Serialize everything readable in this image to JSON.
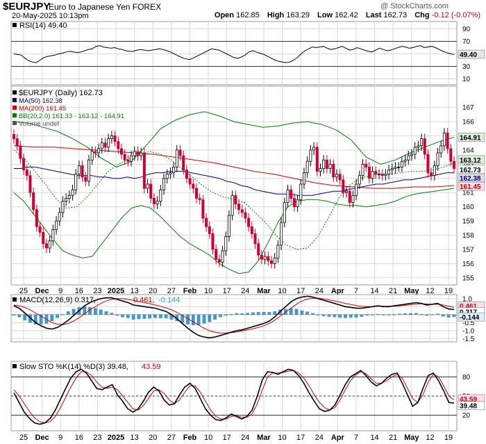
{
  "header": {
    "symbol": "$EURJPY",
    "description": "Euro to Japanese Yen FOREX",
    "datetime": "20-May-2025 10:13pm",
    "copyright": "@ StockCharts.com",
    "open_label": "Open",
    "open": "162.85",
    "high_label": "High",
    "high": "163.29",
    "low_label": "Low",
    "low": "162.42",
    "last_label": "Last",
    "last": "162.73",
    "chg_label": "Chg",
    "chg": "-0.12 (-0.07%)",
    "chg_color": "#cc0000"
  },
  "chart_data": [
    {
      "type": "line",
      "name": "rsi_panel",
      "legend": "RSI(14) 49.40",
      "ylim": [
        0,
        100
      ],
      "y_ticks": [
        "90",
        "70",
        "50",
        "30",
        "10"
      ],
      "reference_lines": [
        70,
        30
      ],
      "last_value_label": "49.40",
      "series": [
        {
          "values": [
            50,
            49,
            48,
            43,
            39,
            37,
            36,
            40,
            44,
            46,
            47,
            48,
            50,
            51,
            53,
            54,
            53,
            52,
            53,
            55,
            57,
            58,
            62,
            63,
            61,
            60,
            59,
            60,
            58,
            57,
            55,
            54,
            54,
            56,
            57,
            56,
            55,
            56,
            57,
            58,
            57,
            55,
            53,
            50,
            47,
            44,
            42,
            41,
            43,
            46,
            49,
            52,
            55,
            58,
            57,
            56,
            53,
            50,
            47,
            44,
            43,
            45,
            48,
            53,
            55,
            53,
            51,
            49,
            46,
            43,
            40,
            38,
            37,
            36,
            37,
            40,
            44,
            50,
            55,
            58,
            61,
            60,
            61,
            62,
            59,
            57,
            58,
            60,
            62,
            59,
            56,
            57,
            60,
            58,
            56,
            54,
            53,
            56,
            59,
            57,
            55,
            56,
            58,
            60,
            62,
            61,
            59,
            60,
            62,
            63,
            60,
            61,
            62,
            60,
            57,
            54,
            52,
            50,
            49
          ]
        }
      ]
    },
    {
      "type": "candlestick",
      "name": "price_panel",
      "legend": [
        "$EURJPY (Daily) 162.73",
        "MA(50) 162.38",
        "MA(200) 161.45",
        "BB(20,2.0) 161.33 - 163.12 - 164.91",
        "Volume undef"
      ],
      "ylim": [
        154.5,
        168.5
      ],
      "y_ticks": [
        "167",
        "166",
        "165",
        "164",
        "163",
        "162",
        "161",
        "160",
        "159",
        "158",
        "157",
        "156",
        "155"
      ],
      "price_badges": [
        "164.91",
        "163.12",
        "162.73",
        "162.38",
        "161.45"
      ],
      "x_tick_labels": [
        "25",
        "Dec",
        "9",
        "16",
        "23",
        "2025",
        "13",
        "20",
        "27",
        "Feb",
        "10",
        "17",
        "24",
        "Mar",
        "10",
        "17",
        "24",
        "Apr",
        "7",
        "14",
        "21",
        "May",
        "12",
        "19"
      ],
      "bold_x_labels": [
        "Dec",
        "2025",
        "Feb",
        "Mar",
        "Apr",
        "May"
      ],
      "closes": [
        164.8,
        164.3,
        163.4,
        162.6,
        162.2,
        161.0,
        159.8,
        158.6,
        158.2,
        157.4,
        157.1,
        157.6,
        158.4,
        159.0,
        159.6,
        160.4,
        160.6,
        160.8,
        161.2,
        162.3,
        162.9,
        162.1,
        161.8,
        163.3,
        163.9,
        163.8,
        164.1,
        164.5,
        164.2,
        164.8,
        165.0,
        164.6,
        164.1,
        163.7,
        163.3,
        163.2,
        163.6,
        163.9,
        163.6,
        163.8,
        161.3,
        161.6,
        160.6,
        160.2,
        160.4,
        161.2,
        162.0,
        162.3,
        162.4,
        162.8,
        164.0,
        163.6,
        162.6,
        162.0,
        161.6,
        161.3,
        160.6,
        160.5,
        159.2,
        158.6,
        158.1,
        157.0,
        156.3,
        156.1,
        156.9,
        157.9,
        159.4,
        160.8,
        160.2,
        159.8,
        159.6,
        159.2,
        158.6,
        158.1,
        157.4,
        156.6,
        156.3,
        156.5,
        156.2,
        156.0,
        156.4,
        157.3,
        158.9,
        160.3,
        161.2,
        160.6,
        160.0,
        160.5,
        161.6,
        162.4,
        163.2,
        164.0,
        164.2,
        162.5,
        162.7,
        163.3,
        162.7,
        163.0,
        162.1,
        162.3,
        161.9,
        161.0,
        161.1,
        160.3,
        160.8,
        161.6,
        162.2,
        163.0,
        162.8,
        162.0,
        162.5,
        162.3,
        162.3,
        162.2,
        162.3,
        162.6,
        162.7,
        162.8,
        162.8,
        163.2,
        163.3,
        163.6,
        163.7,
        164.2,
        164.3,
        164.8,
        163.7,
        162.4,
        162.2,
        162.9,
        163.8,
        164.3,
        165.2,
        164.1,
        163.2,
        162.7
      ],
      "series": [
        {
          "name": "MA(50)",
          "color": "#000080",
          "values": [
            162.7,
            162.7,
            162.8,
            162.8,
            162.7,
            162.6,
            162.5,
            162.4,
            162.3,
            162.2,
            162.2,
            162.2,
            162.1,
            162.1,
            162.0,
            162.0,
            162.1,
            162.0,
            162.1,
            162.3,
            162.4,
            162.4,
            162.5,
            162.5,
            162.5,
            162.4,
            162.3,
            162.2,
            162.1,
            162.0,
            161.8,
            161.7,
            161.5,
            161.4,
            161.2,
            161.1,
            161.0,
            160.9,
            160.9,
            160.9,
            160.8,
            160.8,
            160.8,
            160.9,
            161.0,
            161.1,
            161.1,
            161.2,
            161.3,
            161.4,
            161.5,
            161.6,
            161.6,
            161.7,
            161.8,
            161.9,
            161.9,
            162.0,
            162.1,
            162.2,
            162.3,
            162.4,
            162.4
          ]
        },
        {
          "name": "MA(200)",
          "color": "#cc0000",
          "values": [
            164.3,
            164.2,
            164.2,
            164.1,
            164.0,
            163.9,
            163.8,
            163.7,
            163.5,
            163.3,
            163.1,
            162.8,
            162.5,
            162.3,
            162.0,
            161.7,
            161.5,
            161.4,
            161.3,
            161.3,
            161.4,
            161.4,
            161.5
          ]
        },
        {
          "name": "BB upper",
          "color": "#008000",
          "values": [
            166.0,
            165.9,
            165.6,
            165.3,
            164.8,
            164.2,
            163.4,
            162.8,
            163.2,
            164.3,
            165.5,
            166.1,
            166.5,
            166.7,
            166.4,
            166.0,
            165.8,
            165.6,
            165.7,
            165.9,
            166.0,
            165.8,
            165.4,
            164.7,
            163.5,
            163.0,
            163.3,
            163.8,
            164.2,
            164.6,
            164.9
          ]
        },
        {
          "name": "BB lower",
          "color": "#008000",
          "values": [
            161.0,
            160.4,
            159.5,
            158.6,
            157.7,
            156.9,
            156.6,
            156.4,
            156.5,
            157.4,
            158.3,
            159.2,
            159.9,
            160.1,
            159.9,
            159.3,
            158.6,
            157.9,
            157.4,
            157.0,
            156.6,
            156.0,
            155.6,
            155.3,
            155.4,
            156.2,
            157.5,
            158.9,
            160.0,
            160.4,
            160.5,
            160.5,
            160.4,
            160.2,
            160.1,
            160.1,
            160.0,
            160.1,
            160.2,
            160.4,
            160.7,
            160.9,
            161.0,
            161.1,
            161.2,
            161.3
          ]
        },
        {
          "name": "BB middle",
          "color": "#008000",
          "values": [
            164.0,
            163.4,
            162.5,
            161.6,
            160.6,
            159.9,
            160.0,
            160.7,
            161.6,
            162.5,
            163.0,
            163.4,
            163.7,
            163.9,
            163.7,
            163.3,
            162.7,
            162.1,
            161.5,
            161.0,
            160.7,
            160.5,
            160.3,
            159.6,
            158.9,
            158.0,
            157.3,
            157.0,
            157.1,
            157.9,
            159.2,
            160.6,
            161.5,
            162.0,
            162.2,
            162.3,
            162.3,
            162.4,
            162.5,
            162.5,
            162.6,
            162.8,
            163.1
          ]
        }
      ]
    },
    {
      "type": "line",
      "name": "macd_panel",
      "legend_prefix": "MACD(12,26,9) 0.317,",
      "legend_signal": " 0.461,",
      "legend_hist": " -0.144",
      "ylim": [
        -1.7,
        1.25
      ],
      "y_ticks": [
        "1.0",
        "0.5",
        "-0.5",
        "-1.0",
        "-1.5"
      ],
      "value_badges": [
        "0.461",
        "0.317",
        "-0.144"
      ],
      "series": [
        {
          "name": "MACD",
          "color": "#000000",
          "values": [
            0.55,
            0.4,
            0.1,
            -0.2,
            -0.5,
            -0.7,
            -0.85,
            -0.9,
            -0.8,
            -0.6,
            -0.35,
            -0.05,
            0.25,
            0.55,
            0.75,
            0.9,
            1.0,
            1.05,
            1.05,
            0.95,
            0.85,
            0.75,
            0.6,
            0.55,
            0.5,
            0.45,
            0.4,
            0.3,
            0.2,
            0.0,
            -0.25,
            -0.55,
            -0.85,
            -1.1,
            -1.3,
            -1.4,
            -1.45,
            -1.4,
            -1.3,
            -1.2,
            -1.1,
            -1.0,
            -0.95,
            -0.85,
            -0.75,
            -0.65,
            -0.55,
            -0.4,
            -0.15,
            0.2,
            0.5,
            0.8,
            1.0,
            1.1,
            1.15,
            1.1,
            1.0,
            0.9,
            0.8,
            0.7,
            0.6,
            0.5,
            0.45,
            0.4,
            0.4,
            0.45,
            0.5,
            0.55,
            0.5,
            0.5,
            0.55,
            0.6,
            0.65,
            0.7,
            0.75,
            0.7,
            0.6,
            0.65,
            0.7,
            0.5,
            0.35,
            0.32
          ]
        },
        {
          "name": "Signal",
          "color": "#cc0000",
          "values": [
            0.6,
            0.55,
            0.45,
            0.3,
            0.1,
            -0.1,
            -0.3,
            -0.5,
            -0.6,
            -0.62,
            -0.55,
            -0.4,
            -0.2,
            0.05,
            0.3,
            0.5,
            0.7,
            0.85,
            0.95,
            1.0,
            1.0,
            0.95,
            0.9,
            0.82,
            0.75,
            0.68,
            0.6,
            0.52,
            0.42,
            0.3,
            0.15,
            -0.05,
            -0.25,
            -0.45,
            -0.65,
            -0.85,
            -1.0,
            -1.1,
            -1.15,
            -1.15,
            -1.12,
            -1.08,
            -1.02,
            -0.95,
            -0.88,
            -0.8,
            -0.7,
            -0.55,
            -0.35,
            -0.1,
            0.15,
            0.4,
            0.65,
            0.85,
            0.97,
            1.02,
            1.02,
            0.98,
            0.92,
            0.85,
            0.78,
            0.7,
            0.63,
            0.57,
            0.52,
            0.5,
            0.5,
            0.52,
            0.52,
            0.52,
            0.53,
            0.55,
            0.58,
            0.62,
            0.66,
            0.68,
            0.66,
            0.64,
            0.65,
            0.6,
            0.52,
            0.46
          ]
        }
      ]
    },
    {
      "type": "line",
      "name": "sto_panel",
      "legend_prefix": "Slow STO %K(14) %D(3) 39.48,",
      "legend_d": " 43.59",
      "ylim": [
        0,
        100
      ],
      "y_ticks": [
        "80",
        "50",
        "20"
      ],
      "reference_lines": [
        80,
        50,
        20
      ],
      "value_badges": [
        "43.59",
        "39.48"
      ],
      "x_tick_labels": [
        "25",
        "Dec",
        "9",
        "16",
        "23",
        "2025",
        "13",
        "20",
        "27",
        "Feb",
        "10",
        "17",
        "24",
        "Mar",
        "10",
        "17",
        "24",
        "Apr",
        "7",
        "14",
        "21",
        "May",
        "12",
        "19"
      ],
      "series": [
        {
          "name": "%K",
          "color": "#000000",
          "values": [
            55,
            40,
            25,
            15,
            8,
            6,
            8,
            15,
            28,
            45,
            62,
            78,
            88,
            92,
            86,
            74,
            62,
            60,
            64,
            68,
            52,
            42,
            30,
            25,
            30,
            42,
            56,
            64,
            58,
            44,
            36,
            38,
            52,
            64,
            70,
            62,
            46,
            30,
            20,
            13,
            12,
            16,
            22,
            18,
            14,
            18,
            28,
            50,
            76,
            88,
            87,
            84,
            88,
            92,
            90,
            82,
            70,
            55,
            42,
            30,
            26,
            28,
            36,
            52,
            68,
            80,
            85,
            90,
            82,
            72,
            66,
            70,
            78,
            84,
            86,
            70,
            52,
            34,
            40,
            62,
            82,
            86,
            74,
            58,
            40,
            39
          ]
        },
        {
          "name": "%D",
          "color": "#cc0000",
          "values": [
            60,
            50,
            38,
            26,
            16,
            10,
            8,
            10,
            18,
            32,
            48,
            64,
            78,
            88,
            88,
            82,
            72,
            64,
            62,
            64,
            60,
            50,
            40,
            30,
            28,
            35,
            46,
            58,
            60,
            54,
            44,
            38,
            44,
            56,
            66,
            66,
            56,
            42,
            28,
            18,
            14,
            14,
            18,
            19,
            17,
            17,
            22,
            38,
            60,
            80,
            86,
            86,
            87,
            89,
            90,
            86,
            78,
            66,
            52,
            40,
            32,
            28,
            32,
            44,
            60,
            74,
            83,
            88,
            85,
            77,
            70,
            70,
            74,
            80,
            84,
            78,
            62,
            46,
            40,
            52,
            72,
            84,
            80,
            66,
            50,
            44
          ]
        }
      ]
    }
  ]
}
